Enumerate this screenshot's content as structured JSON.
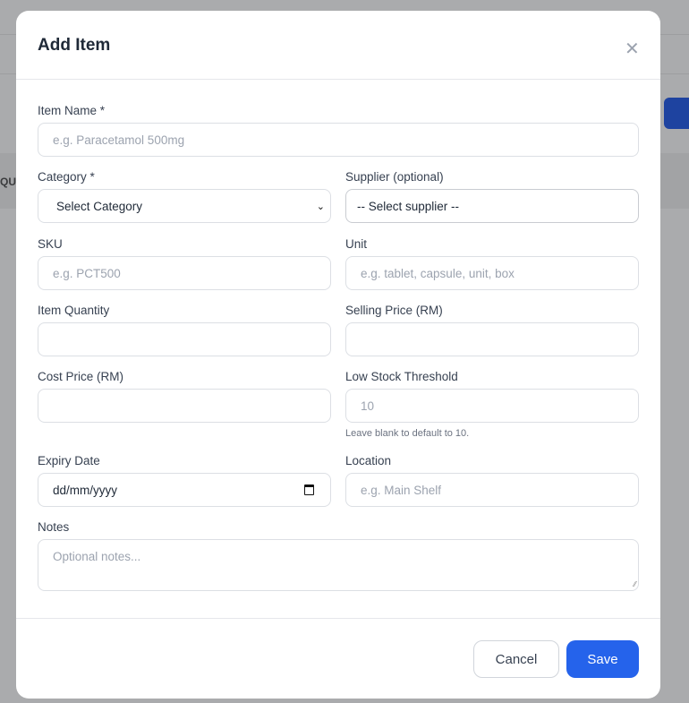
{
  "background": {
    "column_header_fragment": "QU"
  },
  "modal": {
    "title": "Add Item",
    "close_icon": "close-icon",
    "fields": {
      "item_name": {
        "label": "Item Name *",
        "placeholder": "e.g. Paracetamol 500mg"
      },
      "category": {
        "label": "Category *",
        "value": "Select Category"
      },
      "supplier": {
        "label": "Supplier (optional)",
        "value": "-- Select supplier --"
      },
      "sku": {
        "label": "SKU",
        "placeholder": "e.g. PCT500"
      },
      "unit": {
        "label": "Unit",
        "placeholder": "e.g. tablet, capsule, unit, box"
      },
      "item_quantity": {
        "label": "Item Quantity",
        "value": ""
      },
      "selling_price": {
        "label": "Selling Price (RM)",
        "value": ""
      },
      "cost_price": {
        "label": "Cost Price (RM)",
        "value": ""
      },
      "low_stock_threshold": {
        "label": "Low Stock Threshold",
        "placeholder": "10",
        "hint": "Leave blank to default to 10."
      },
      "expiry_date": {
        "label": "Expiry Date",
        "placeholder": "dd/mm/yyyy"
      },
      "location": {
        "label": "Location",
        "placeholder": "e.g. Main Shelf"
      },
      "notes": {
        "label": "Notes",
        "placeholder": "Optional notes..."
      }
    },
    "buttons": {
      "cancel": "Cancel",
      "save": "Save"
    },
    "colors": {
      "primary": "#2563eb",
      "overlay": "#aaabad"
    }
  }
}
